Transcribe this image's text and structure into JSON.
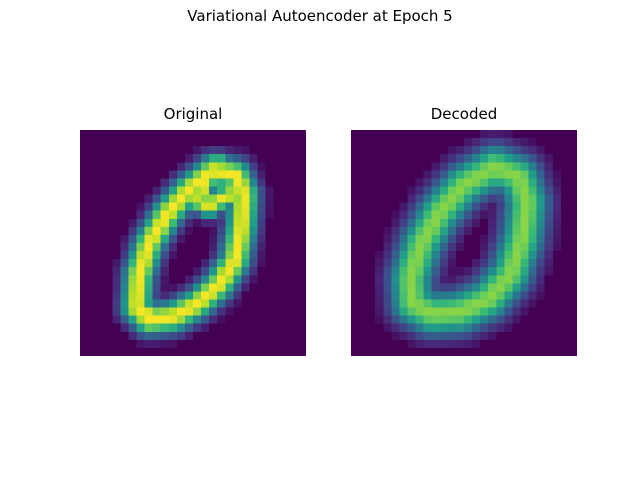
{
  "figure": {
    "title": "Variational Autoencoder at Epoch 5"
  },
  "chart_data": [
    {
      "type": "heatmap",
      "title": "Original",
      "image_size": [
        28,
        28
      ],
      "colormap": "viridis",
      "value_range": [
        0,
        1
      ],
      "axes": "off",
      "strokes": [
        {
          "p": [
            [
              16.5,
              5.0
            ],
            [
              19.3,
              5.6
            ],
            [
              20.3,
              8.0
            ],
            [
              20.0,
              12.0
            ],
            [
              19.2,
              16.2
            ],
            [
              17.2,
              19.2
            ],
            [
              14.5,
              21.6
            ],
            [
              11.5,
              23.2
            ],
            [
              8.5,
              23.5
            ],
            [
              7.0,
              22.0
            ],
            [
              7.3,
              18.0
            ],
            [
              8.6,
              14.0
            ],
            [
              10.8,
              10.4
            ],
            [
              13.4,
              7.5
            ],
            [
              16.5,
              5.0
            ]
          ],
          "w": 1.35,
          "v": 0.99
        },
        {
          "p": [
            [
              17.0,
              4.3
            ],
            [
              15.5,
              6.5
            ],
            [
              14.8,
              8.8
            ],
            [
              16.0,
              9.5
            ],
            [
              17.5,
              8.5
            ],
            [
              19.2,
              7.8
            ]
          ],
          "w": 1.0,
          "v": 0.97
        },
        {
          "p": [
            [
              7.6,
              22.3
            ],
            [
              9.5,
              23.4
            ],
            [
              12.0,
              23.2
            ]
          ],
          "w": 1.0,
          "v": 0.98
        }
      ]
    },
    {
      "type": "heatmap",
      "title": "Decoded",
      "image_size": [
        28,
        28
      ],
      "colormap": "viridis",
      "value_range": [
        0,
        1
      ],
      "axes": "off",
      "strokes": [
        {
          "p": [
            [
              17.8,
              4.6
            ],
            [
              20.8,
              5.8
            ],
            [
              21.8,
              9.0
            ],
            [
              21.2,
              13.5
            ],
            [
              19.8,
              17.8
            ],
            [
              17.0,
              21.0
            ],
            [
              13.5,
              22.6
            ],
            [
              10.0,
              22.8
            ],
            [
              7.6,
              21.5
            ],
            [
              7.4,
              18.2
            ],
            [
              8.8,
              14.0
            ],
            [
              11.0,
              10.2
            ],
            [
              14.0,
              6.8
            ],
            [
              17.8,
              4.6
            ]
          ],
          "w": 1.9,
          "v": 0.82
        }
      ]
    }
  ]
}
